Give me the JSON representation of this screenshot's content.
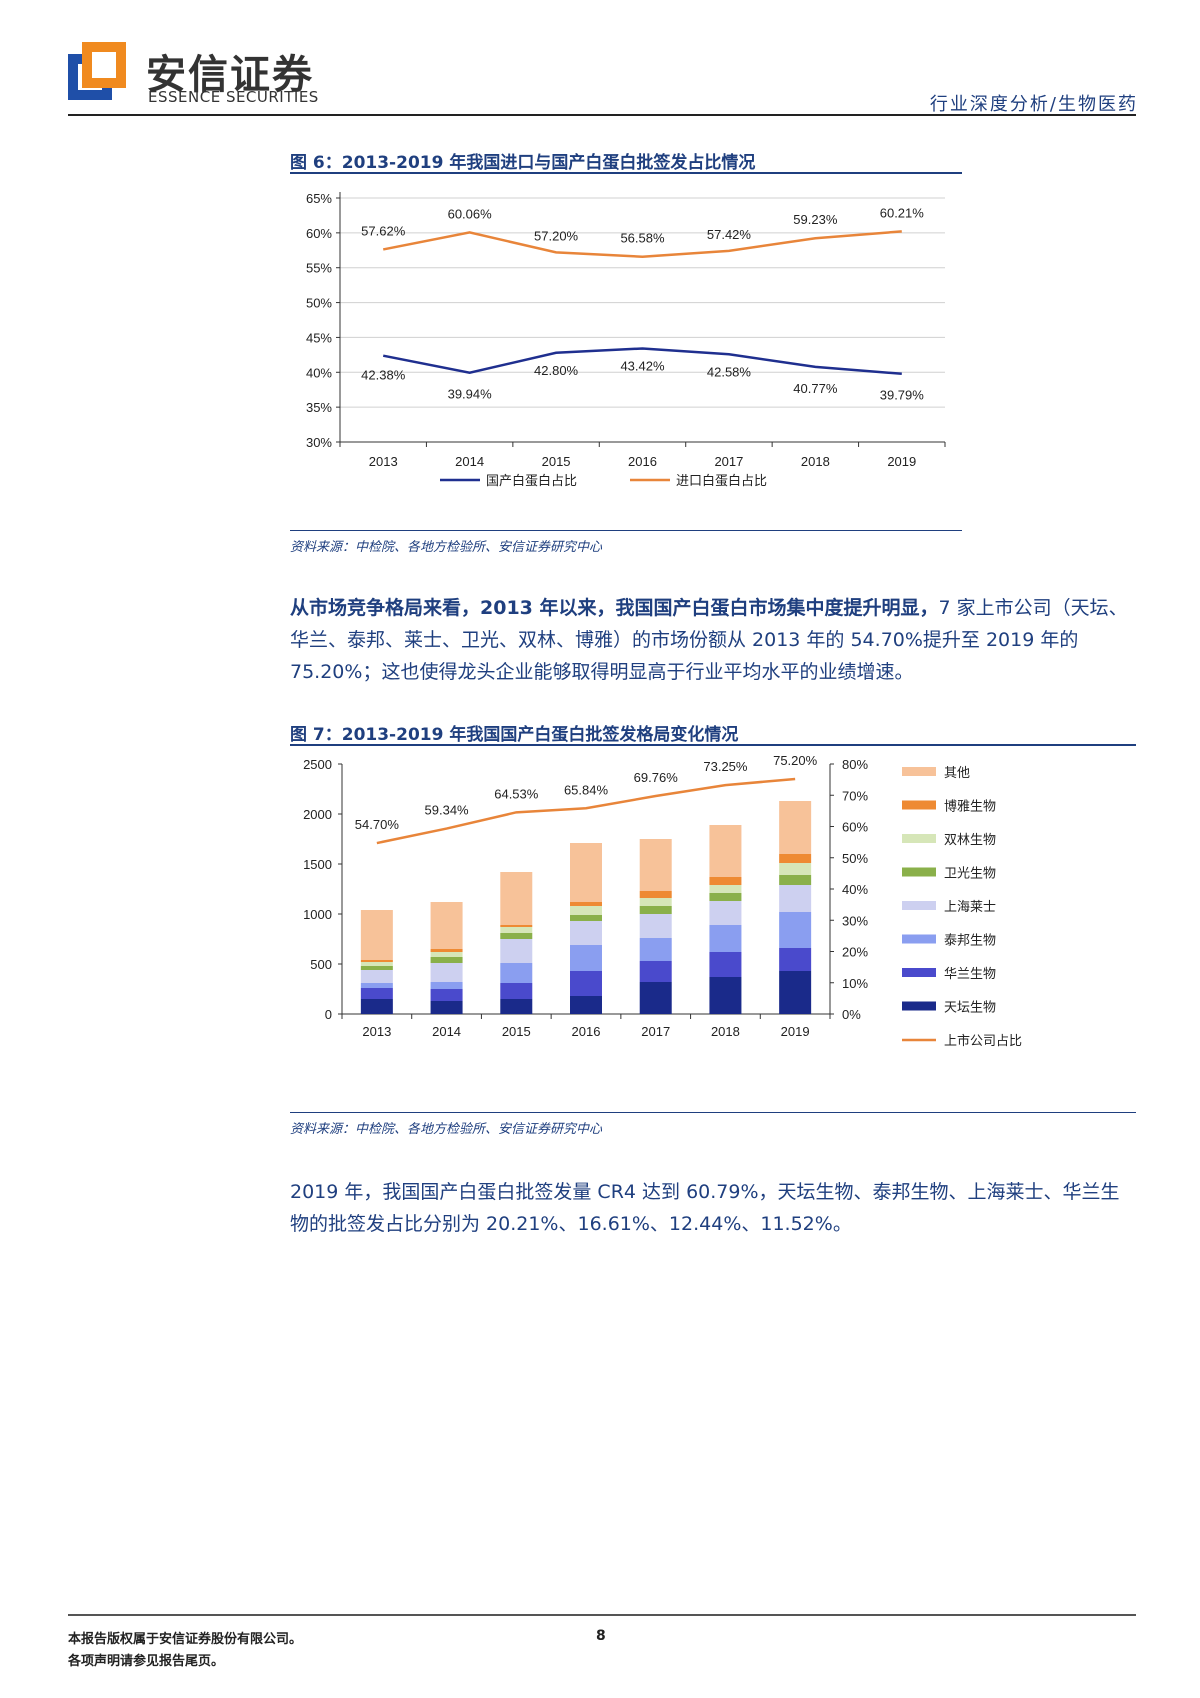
{
  "header": {
    "brand_cn": "安信证券",
    "brand_en": "ESSENCE SECURITIES",
    "category": "行业深度分析/生物医药"
  },
  "figure6": {
    "title": "图 6：2013-2019 年我国进口与国产白蛋白批签发占比情况",
    "source": "资料来源：中检院、各地方检验所、安信证券研究中心",
    "chart_data": {
      "type": "line",
      "categories": [
        "2013",
        "2014",
        "2015",
        "2016",
        "2017",
        "2018",
        "2019"
      ],
      "y_ticks": [
        "65%",
        "60%",
        "55%",
        "50%",
        "45%",
        "40%",
        "35%",
        "30%"
      ],
      "ylim": [
        30,
        65
      ],
      "series": [
        {
          "name": "国产白蛋白占比",
          "color": "#1f2f8f",
          "values": [
            42.38,
            39.94,
            42.8,
            43.42,
            42.58,
            40.77,
            39.79
          ],
          "labels": [
            "42.38%",
            "39.94%",
            "42.80%",
            "43.42%",
            "42.58%",
            "40.77%",
            "39.79%"
          ]
        },
        {
          "name": "进口白蛋白占比",
          "color": "#e8853a",
          "values": [
            57.62,
            60.06,
            57.2,
            56.58,
            57.42,
            59.23,
            60.21
          ],
          "labels": [
            "57.62%",
            "60.06%",
            "57.20%",
            "56.58%",
            "57.42%",
            "59.23%",
            "60.21%"
          ]
        }
      ],
      "grid": true,
      "legend": "bottom"
    }
  },
  "paragraph1": {
    "bold": "从市场竞争格局来看，2013 年以来，我国国产白蛋白市场集中度提升明显，",
    "rest": "7 家上市公司（天坛、华兰、泰邦、莱士、卫光、双林、博雅）的市场份额从 2013 年的 54.70%提升至 2019 年的 75.20%；这也使得龙头企业能够取得明显高于行业平均水平的业绩增速。"
  },
  "figure7": {
    "title": "图 7：2013-2019 年我国国产白蛋白批签发格局变化情况",
    "source": "资料来源：中检院、各地方检验所、安信证券研究中心",
    "chart_data": {
      "type": "bar",
      "stacked": true,
      "categories": [
        "2013",
        "2014",
        "2015",
        "2016",
        "2017",
        "2018",
        "2019"
      ],
      "y_left_ticks": [
        "2500",
        "2000",
        "1500",
        "1000",
        "500",
        "0"
      ],
      "ylim_left": [
        0,
        2500
      ],
      "y_right_ticks": [
        "80%",
        "70%",
        "60%",
        "50%",
        "40%",
        "30%",
        "20%",
        "10%",
        "0%"
      ],
      "ylim_right": [
        0,
        80
      ],
      "series": [
        {
          "name": "天坛生物",
          "color": "#1a2a8a",
          "values": [
            150,
            130,
            150,
            180,
            320,
            370,
            430
          ]
        },
        {
          "name": "华兰生物",
          "color": "#4a4acc",
          "values": [
            110,
            120,
            160,
            250,
            210,
            250,
            230
          ]
        },
        {
          "name": "泰邦生物",
          "color": "#8a9ef0",
          "values": [
            50,
            70,
            200,
            260,
            230,
            270,
            360
          ]
        },
        {
          "name": "上海莱士",
          "color": "#cdd0f0",
          "values": [
            130,
            190,
            240,
            240,
            240,
            240,
            270
          ]
        },
        {
          "name": "卫光生物",
          "color": "#8ab04a",
          "values": [
            40,
            60,
            60,
            60,
            80,
            80,
            100
          ]
        },
        {
          "name": "双林生物",
          "color": "#d6e6b8",
          "values": [
            40,
            50,
            60,
            90,
            80,
            80,
            120
          ]
        },
        {
          "name": "博雅生物",
          "color": "#ee8a33",
          "values": [
            20,
            30,
            20,
            40,
            70,
            80,
            90
          ]
        },
        {
          "name": "其他",
          "color": "#f7c299",
          "values": [
            500,
            470,
            530,
            590,
            520,
            520,
            530
          ]
        }
      ],
      "line": {
        "name": "上市公司占比",
        "color": "#e8853a",
        "axis": "right",
        "values": [
          54.7,
          59.34,
          64.53,
          65.84,
          69.76,
          73.25,
          75.2
        ],
        "labels": [
          "54.70%",
          "59.34%",
          "64.53%",
          "65.84%",
          "69.76%",
          "73.25%",
          "75.20%"
        ]
      },
      "legend": "right"
    }
  },
  "paragraph2": {
    "text": "2019 年，我国国产白蛋白批签发量 CR4 达到 60.79%，天坛生物、泰邦生物、上海莱士、华兰生物的批签发占比分别为 20.21%、16.61%、12.44%、11.52%。"
  },
  "footer": {
    "line1": "本报告版权属于安信证券股份有限公司。",
    "line2": "各项声明请参见报告尾页。",
    "page": "8"
  }
}
